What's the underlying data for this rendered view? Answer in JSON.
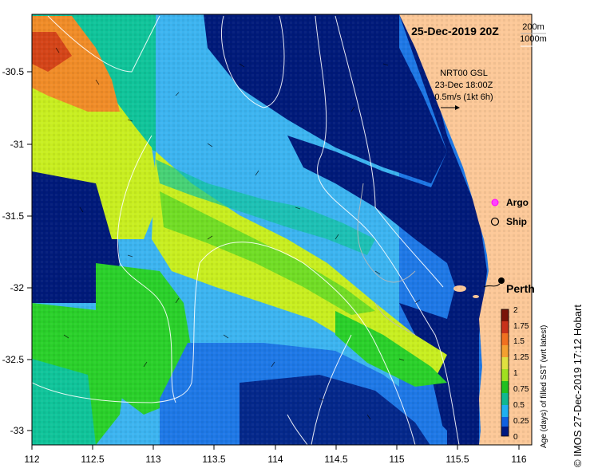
{
  "title": "25-Dec-2019 20Z",
  "depth_legend": [
    "200m",
    "1000m"
  ],
  "current_info": {
    "line1": "NRT00 GSL",
    "line2": "23-Dec 18:00Z",
    "line3": "0.5m/s (1kt 6h)"
  },
  "markers": {
    "argo": "Argo",
    "ship": "Ship"
  },
  "place_label": "Perth",
  "colorbar": {
    "label": "Age (days) of filled SST (wrt latest)",
    "ticks": [
      "2",
      "1.75",
      "1.5",
      "1.25",
      "1",
      "0.75",
      "0.5",
      "0.25",
      "0"
    ],
    "colors": [
      "#7a1408",
      "#c8321a",
      "#f07020",
      "#f4a030",
      "#e0e040",
      "#a0e020",
      "#20c020",
      "#10b890",
      "#20b0f0",
      "#1060e0",
      "#001880"
    ]
  },
  "x_ticks": [
    "112",
    "112.5",
    "113",
    "113.5",
    "114",
    "114.5",
    "115",
    "115.5",
    "116"
  ],
  "y_ticks": [
    "-30.5",
    "-31",
    "-31.5",
    "-32",
    "-32.5",
    "-33"
  ],
  "colors": {
    "land": "#fcc898",
    "dark_navy": "#001a7a",
    "light_blue": "#3cb4f0",
    "mid_blue": "#1e78e6",
    "teal": "#10c49a",
    "green": "#2ad02a",
    "yellow_green": "#c8ee20",
    "orange": "#f08c28",
    "red_orange": "#d44418"
  },
  "credit": "© IMOS 27-Dec-2019 17:12 Hobart"
}
